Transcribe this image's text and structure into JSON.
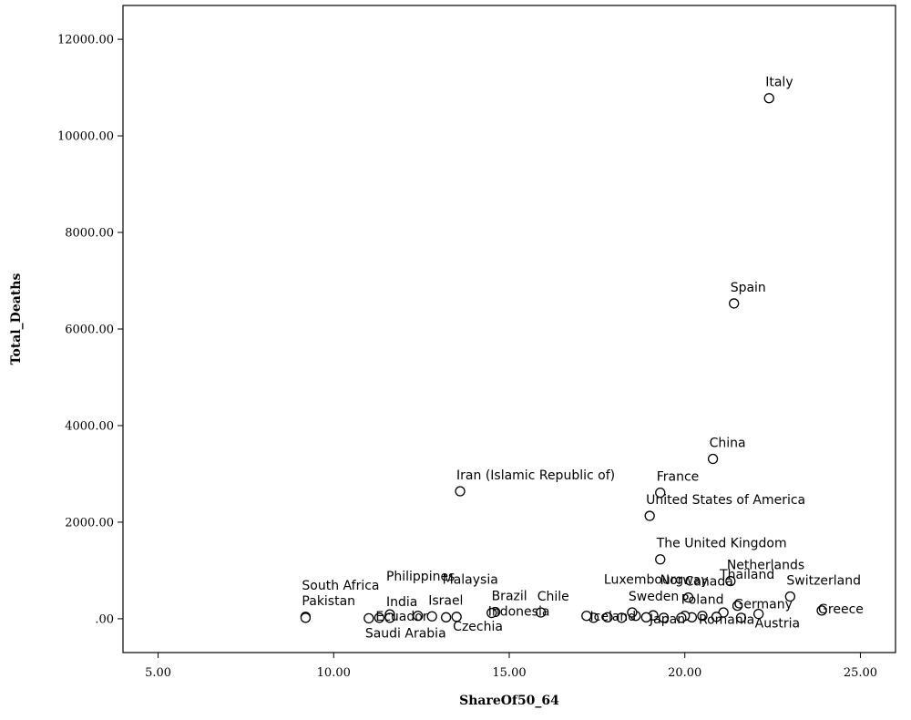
{
  "chart_data": {
    "type": "scatter",
    "title": "",
    "xlabel": "ShareOf50_64",
    "ylabel": "Total_Deaths",
    "xlim": [
      4,
      26
    ],
    "ylim": [
      -700,
      12700
    ],
    "x_ticks": [
      {
        "v": 5,
        "label": "5.00"
      },
      {
        "v": 10,
        "label": "10.00"
      },
      {
        "v": 15,
        "label": "15.00"
      },
      {
        "v": 20,
        "label": "20.00"
      },
      {
        "v": 25,
        "label": "25.00"
      }
    ],
    "y_ticks": [
      {
        "v": 0,
        "label": ".00"
      },
      {
        "v": 2000,
        "label": "2000.00"
      },
      {
        "v": 4000,
        "label": "4000.00"
      },
      {
        "v": 6000,
        "label": "6000.00"
      },
      {
        "v": 8000,
        "label": "8000.00"
      },
      {
        "v": 10000,
        "label": "10000.00"
      },
      {
        "v": 12000,
        "label": "12000.00"
      }
    ],
    "grid": false,
    "points": [
      {
        "x": 22.4,
        "y": 10780,
        "label": "Italy"
      },
      {
        "x": 21.4,
        "y": 6530,
        "label": "Spain"
      },
      {
        "x": 20.8,
        "y": 3310,
        "label": "China"
      },
      {
        "x": 13.6,
        "y": 2640,
        "label": "Iran (Islamic Republic of)"
      },
      {
        "x": 19.3,
        "y": 2610,
        "label": "France"
      },
      {
        "x": 19.0,
        "y": 2130,
        "label": "United States of America"
      },
      {
        "x": 19.3,
        "y": 1230,
        "label": "The United Kingdom"
      },
      {
        "x": 21.3,
        "y": 780,
        "label": "Netherlands"
      },
      {
        "x": 23.0,
        "y": 460,
        "label": "Switzerland"
      },
      {
        "x": 20.1,
        "y": 440,
        "label": "Canada"
      },
      {
        "x": 21.5,
        "y": 270,
        "label": "Germany"
      },
      {
        "x": 23.9,
        "y": 170,
        "label": "Greece"
      },
      {
        "x": 22.1,
        "y": 100,
        "label": "Austria"
      },
      {
        "x": 21.1,
        "y": 130,
        "label": "Thailand"
      },
      {
        "x": 21.6,
        "y": 20,
        "label": ""
      },
      {
        "x": 20.9,
        "y": 40,
        "label": ""
      },
      {
        "x": 20.5,
        "y": 60,
        "label": "Romania"
      },
      {
        "x": 20.2,
        "y": 30,
        "label": ""
      },
      {
        "x": 20.0,
        "y": 60,
        "label": "Poland"
      },
      {
        "x": 19.9,
        "y": 20,
        "label": ""
      },
      {
        "x": 19.4,
        "y": 20,
        "label": "Norway"
      },
      {
        "x": 19.1,
        "y": 70,
        "label": "Japan"
      },
      {
        "x": 18.9,
        "y": 30,
        "label": ""
      },
      {
        "x": 18.6,
        "y": 60,
        "label": ""
      },
      {
        "x": 18.5,
        "y": 130,
        "label": "Sweden"
      },
      {
        "x": 18.2,
        "y": 20,
        "label": ""
      },
      {
        "x": 17.8,
        "y": 30,
        "label": "Luxembourg"
      },
      {
        "x": 17.4,
        "y": 20,
        "label": "Iceland"
      },
      {
        "x": 17.2,
        "y": 60,
        "label": ""
      },
      {
        "x": 15.9,
        "y": 130,
        "label": "Chile"
      },
      {
        "x": 14.6,
        "y": 140,
        "label": "Brazil"
      },
      {
        "x": 14.5,
        "y": 120,
        "label": "Indonesia"
      },
      {
        "x": 13.5,
        "y": 40,
        "label": "Czechia"
      },
      {
        "x": 13.2,
        "y": 30,
        "label": "Malaysia"
      },
      {
        "x": 12.8,
        "y": 50,
        "label": "Israel"
      },
      {
        "x": 12.4,
        "y": 60,
        "label": ""
      },
      {
        "x": 11.6,
        "y": 90,
        "label": "Philippines"
      },
      {
        "x": 11.6,
        "y": 20,
        "label": "India"
      },
      {
        "x": 11.3,
        "y": 20,
        "label": "Ecuador"
      },
      {
        "x": 9.2,
        "y": 40,
        "label": "Pakistan"
      },
      {
        "x": 9.2,
        "y": 20,
        "label": "South Africa"
      },
      {
        "x": 11.0,
        "y": 10,
        "label": "Saudi Arabia"
      }
    ]
  }
}
